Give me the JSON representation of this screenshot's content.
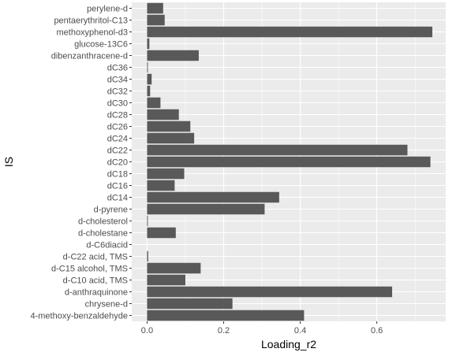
{
  "chart_data": {
    "type": "bar",
    "orientation": "horizontal",
    "xlabel": "Loading_r2",
    "ylabel": "IS",
    "xlim": [
      -0.04,
      0.78
    ],
    "xticks": [
      0.0,
      0.2,
      0.4,
      0.6
    ],
    "xtick_labels": [
      "0.0",
      "0.2",
      "0.4",
      "0.6"
    ],
    "grid": true,
    "colors": {
      "panel": "#ebebeb",
      "grid_major": "#ffffff",
      "bar": "#595959",
      "tick_text": "#4d4d4d"
    },
    "categories": [
      "perylene-d",
      "pentaerythritol-C13",
      "methoxyphenol-d3",
      "glucose-13C6",
      "dibenzanthracene-d",
      "dC36",
      "dC34",
      "dC32",
      "dC30",
      "dC28",
      "dC26",
      "dC24",
      "dC22",
      "dC20",
      "dC18",
      "dC16",
      "dC14",
      "d-pyrene",
      "d-cholesterol",
      "d-cholestane",
      "d-C6diacid",
      "d-C22 acid, TMS",
      "d-C15 alcohol, TMS",
      "d-C10 acid, TMS",
      "d-anthraquinone",
      "chrysene-d",
      "4-methoxy-benzaldehyde"
    ],
    "values": [
      0.042,
      0.046,
      0.745,
      0.006,
      0.135,
      0.002,
      0.012,
      0.008,
      0.035,
      0.083,
      0.113,
      0.123,
      0.68,
      0.74,
      0.097,
      0.072,
      0.345,
      0.307,
      0.002,
      0.075,
      0.0,
      0.003,
      0.14,
      0.1,
      0.64,
      0.223,
      0.41
    ]
  }
}
